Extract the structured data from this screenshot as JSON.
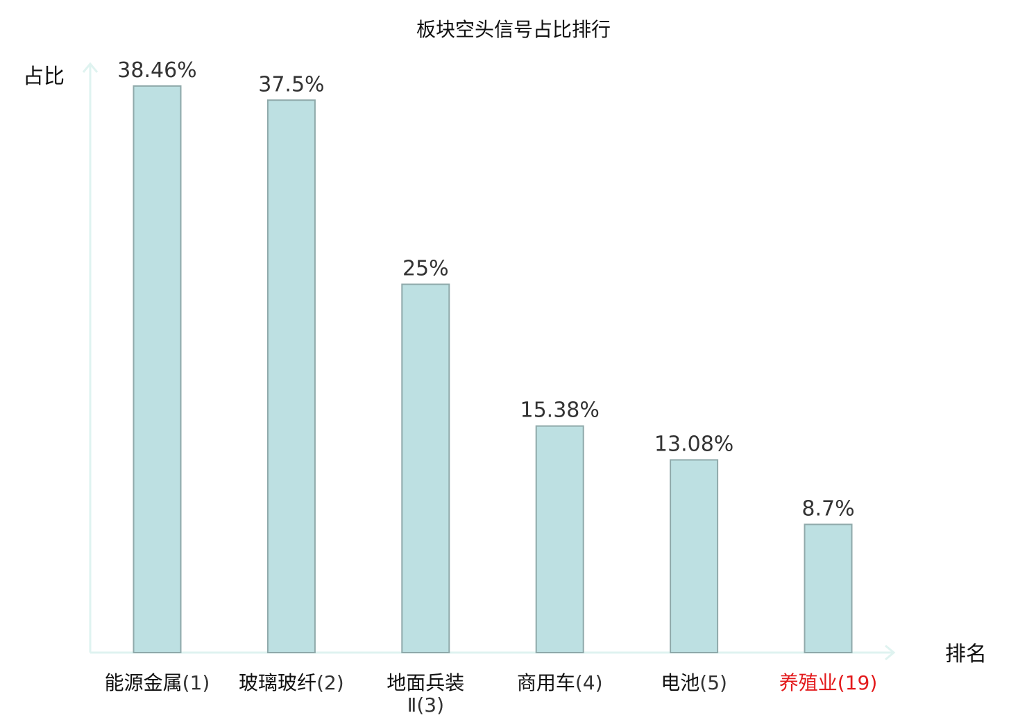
{
  "chart_data": {
    "type": "bar",
    "title": "板块空头信号占比排行",
    "xlabel": "排名",
    "ylabel": "占比",
    "categories": [
      {
        "name": "能源金属",
        "rank": "(1)",
        "highlight": false
      },
      {
        "name": "玻璃玻纤",
        "rank": "(2)",
        "highlight": false
      },
      {
        "name": "地面兵装",
        "rank": "Ⅱ(3)",
        "highlight": false
      },
      {
        "name": "商用车",
        "rank": "(4)",
        "highlight": false
      },
      {
        "name": "电池",
        "rank": "(5)",
        "highlight": false
      },
      {
        "name": "养殖业",
        "rank": "(19)",
        "highlight": true
      }
    ],
    "values": [
      38.46,
      37.5,
      25,
      15.38,
      13.08,
      8.7
    ],
    "value_labels": [
      "38.46%",
      "37.5%",
      "25%",
      "15.38%",
      "13.08%",
      "8.7%"
    ],
    "ylim": [
      0,
      40
    ],
    "grid": false,
    "colors": {
      "bar_fill": "#bde0e2",
      "bar_stroke": "#8fa9aa",
      "axis": "#dff3f0",
      "highlight": "#e31a1c",
      "tick_text": "#111111",
      "tick_rank_text": "#333333"
    }
  }
}
